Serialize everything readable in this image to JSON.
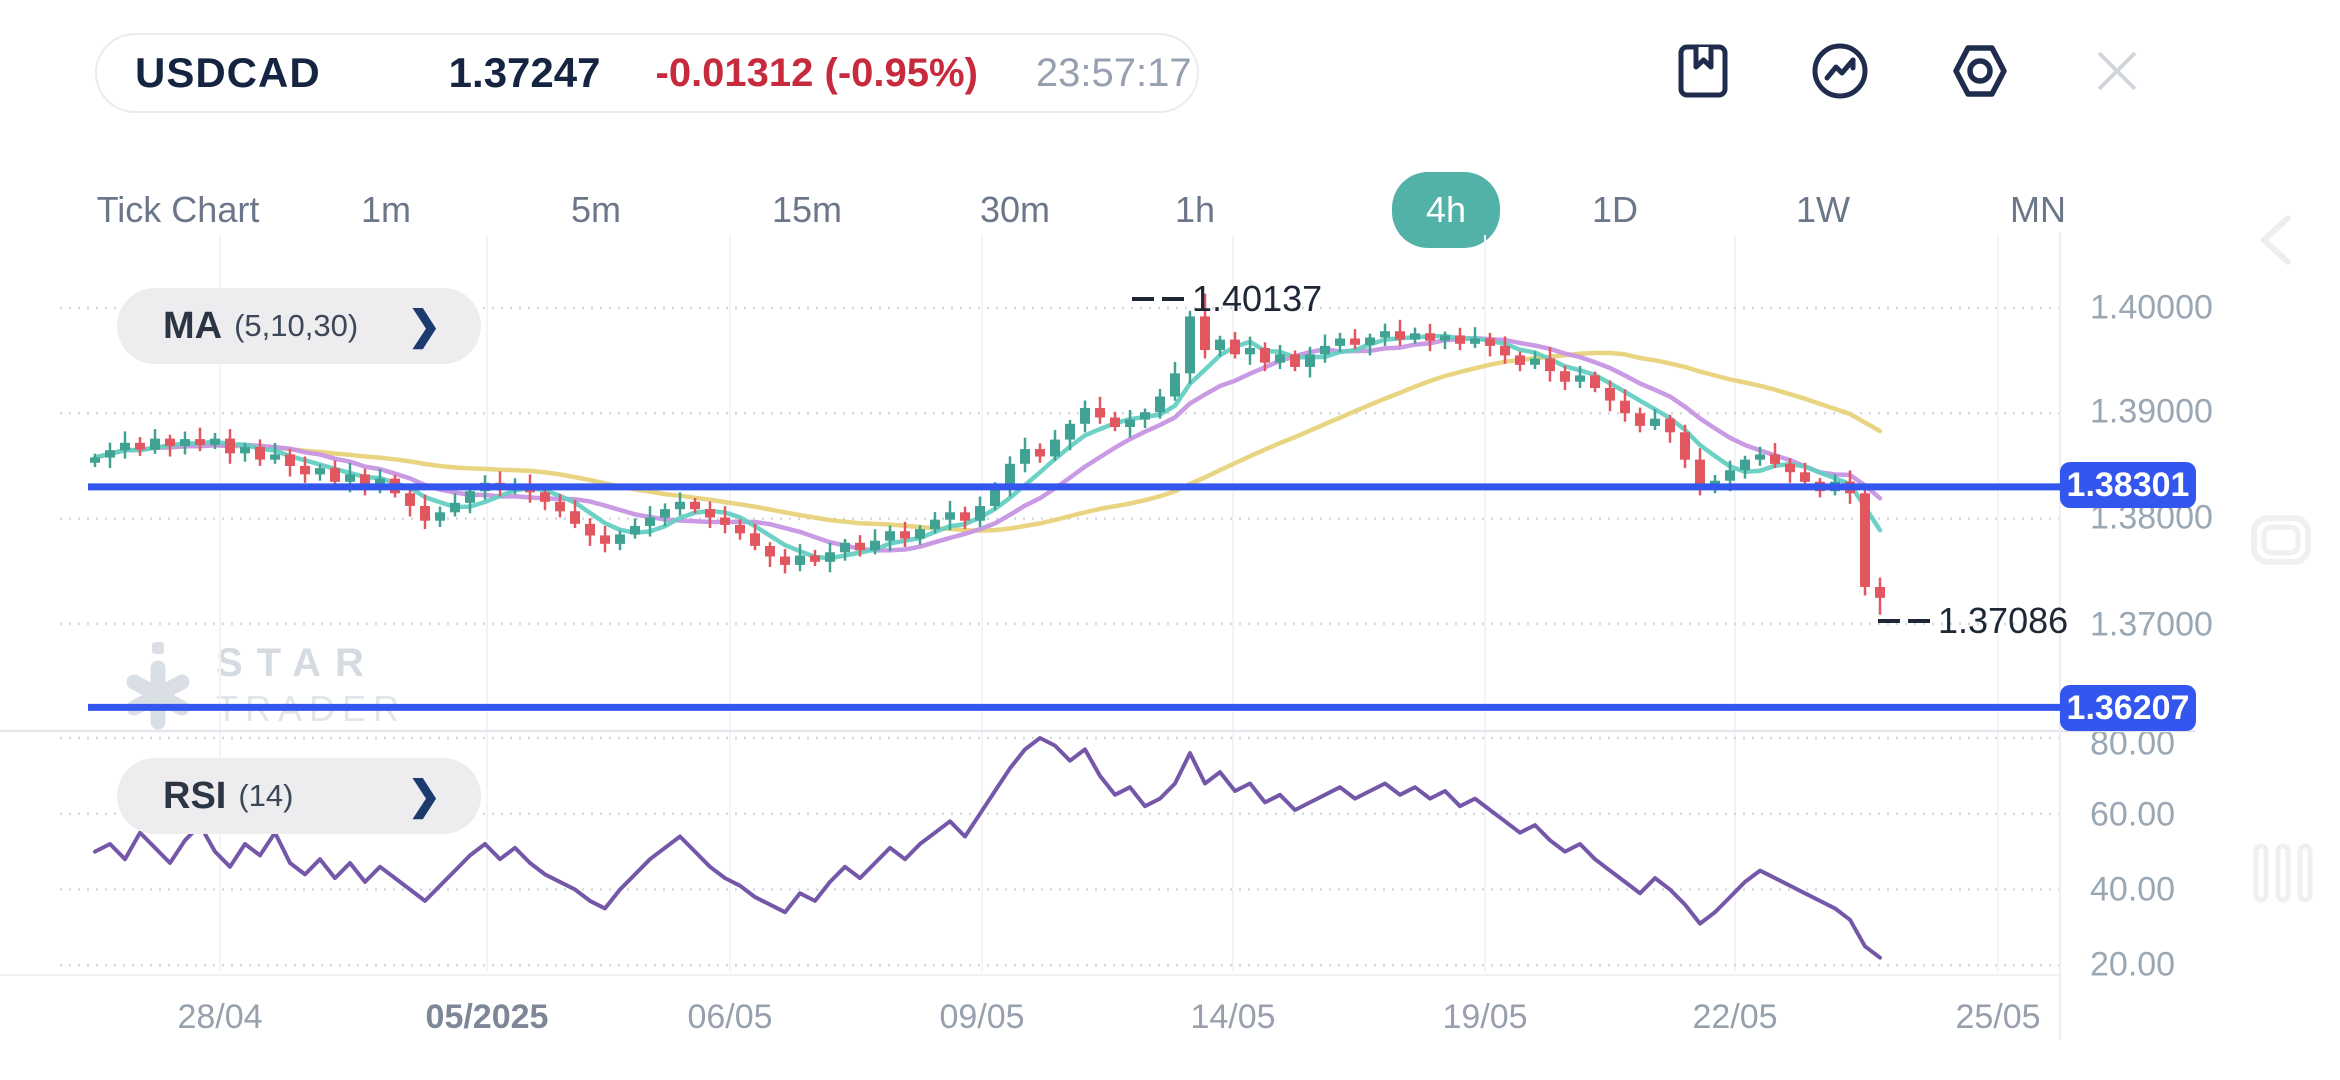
{
  "header": {
    "symbol": "USDCAD",
    "price": "1.37247",
    "change": "-0.01312 (-0.95%)",
    "time": "23:57:17",
    "icons": [
      "bookmark-icon",
      "trend-circle-icon",
      "settings-nut-icon",
      "close-icon"
    ]
  },
  "timeframes": {
    "items": [
      "Tick Chart",
      "1m",
      "5m",
      "15m",
      "30m",
      "1h",
      "4h",
      "1D",
      "1W",
      "MN"
    ],
    "active": "4h",
    "active_color": "#53b2a7"
  },
  "indicators": {
    "ma": {
      "name": "MA",
      "params": "(5,10,30)",
      "chevron": "❯"
    },
    "rsi": {
      "name": "RSI",
      "params": "(14)",
      "chevron": "❯"
    }
  },
  "watermark": {
    "line1": "STAR",
    "line2": "TRADER"
  },
  "chart_data": {
    "type": "candlestick",
    "title": "USDCAD 4h with MA(5,10,30) and RSI(14)",
    "price_axis": {
      "labels": [
        "1.40000",
        "1.39000",
        "1.38000",
        "1.37000"
      ],
      "values": [
        1.4,
        1.39,
        1.38,
        1.37
      ]
    },
    "rsi_axis": {
      "labels": [
        "80.00",
        "60.00",
        "40.00",
        "20.00"
      ],
      "values": [
        80,
        60,
        40,
        20
      ]
    },
    "x_axis": {
      "labels": [
        "28/04",
        "05/2025",
        "06/05",
        "09/05",
        "14/05",
        "19/05",
        "22/05",
        "25/05"
      ]
    },
    "levels": [
      {
        "label": "1.38301",
        "value": 1.38301,
        "color": "#3356ee"
      },
      {
        "label": "1.36207",
        "value": 1.36207,
        "color": "#3356ee"
      }
    ],
    "annotations": [
      {
        "label": "1.40137",
        "value": 1.40137,
        "candle_index": 74,
        "kind": "high"
      },
      {
        "label": "1.37086",
        "value": 1.37086,
        "candle_index": 119,
        "kind": "low"
      }
    ],
    "ma_periods": [
      5,
      10,
      30
    ],
    "ma_colors": [
      "#66cfc2",
      "#c795e3",
      "#e7d27a"
    ],
    "candle_up_color": "#3fa293",
    "candle_down_color": "#e25660",
    "rsi_color": "#7457a8",
    "closes": [
      1.3858,
      1.3865,
      1.3872,
      1.38655,
      1.3876,
      1.3869,
      1.38755,
      1.387,
      1.3876,
      1.3862,
      1.3868,
      1.3856,
      1.3861,
      1.385,
      1.3842,
      1.3848,
      1.3835,
      1.3842,
      1.383,
      1.3838,
      1.3824,
      1.3812,
      1.3798,
      1.3806,
      1.3815,
      1.3826,
      1.3834,
      1.3827,
      1.3833,
      1.3825,
      1.3816,
      1.3807,
      1.3795,
      1.3784,
      1.3776,
      1.3785,
      1.3793,
      1.3801,
      1.3809,
      1.3816,
      1.3809,
      1.3801,
      1.3794,
      1.3786,
      1.3774,
      1.3764,
      1.3756,
      1.3765,
      1.3759,
      1.3768,
      1.3777,
      1.377,
      1.3779,
      1.3788,
      1.3781,
      1.379,
      1.3799,
      1.3806,
      1.3798,
      1.3812,
      1.3831,
      1.3852,
      1.3866,
      1.3859,
      1.3875,
      1.389,
      1.3905,
      1.3896,
      1.3887,
      1.3894,
      1.3901,
      1.3916,
      1.3938,
      1.3992,
      1.396,
      1.397,
      1.3956,
      1.3962,
      1.3948,
      1.3956,
      1.3944,
      1.3956,
      1.3964,
      1.3971,
      1.3965,
      1.3972,
      1.3978,
      1.397,
      1.3976,
      1.3969,
      1.3974,
      1.3966,
      1.3971,
      1.3964,
      1.3955,
      1.3946,
      1.3952,
      1.394,
      1.393,
      1.3936,
      1.3924,
      1.3912,
      1.39,
      1.3888,
      1.3895,
      1.3882,
      1.3856,
      1.3828,
      1.3836,
      1.3846,
      1.3856,
      1.3861,
      1.3852,
      1.3844,
      1.3835,
      1.3826,
      1.3835,
      1.3824,
      1.3735,
      1.37247
    ],
    "rsi": [
      50,
      52,
      48,
      55,
      51,
      47,
      53,
      57,
      50,
      46,
      52,
      49,
      55,
      47,
      44,
      48,
      43,
      47,
      42,
      46,
      43,
      40,
      37,
      41,
      45,
      49,
      52,
      48,
      51,
      47,
      44,
      42,
      40,
      37,
      35,
      40,
      44,
      48,
      51,
      54,
      50,
      46,
      43,
      41,
      38,
      36,
      34,
      39,
      37,
      42,
      46,
      43,
      47,
      51,
      48,
      52,
      55,
      58,
      54,
      60,
      66,
      72,
      77,
      80,
      78,
      74,
      77,
      70,
      65,
      67,
      62,
      64,
      68,
      76,
      68,
      71,
      66,
      68,
      63,
      65,
      61,
      63,
      65,
      67,
      64,
      66,
      68,
      65,
      67,
      64,
      66,
      62,
      64,
      61,
      58,
      55,
      57,
      53,
      50,
      52,
      48,
      45,
      42,
      39,
      43,
      40,
      36,
      31,
      34,
      38,
      42,
      45,
      43,
      41,
      39,
      37,
      35,
      32,
      25,
      22
    ]
  }
}
